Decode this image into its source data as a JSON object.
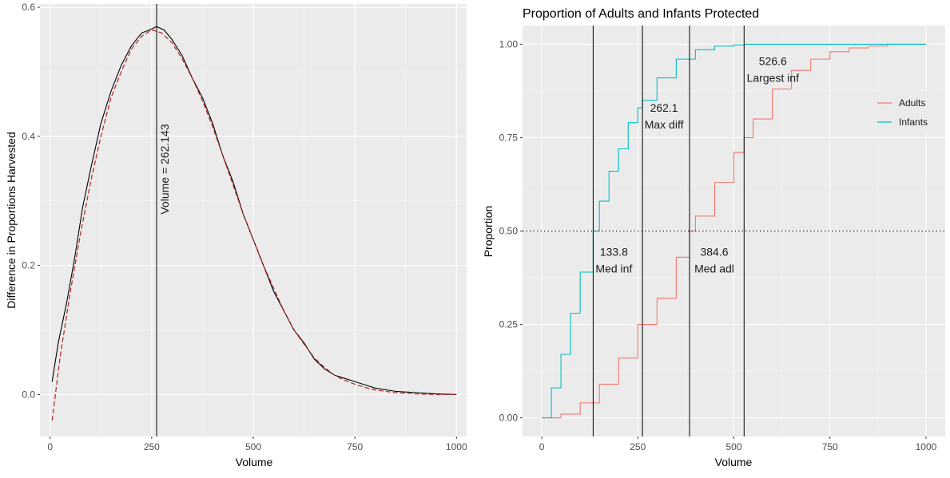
{
  "chart_data": [
    {
      "type": "line",
      "title": "",
      "xlabel": "Volume",
      "ylabel": "Difference in Proportions Harvested",
      "xlim": [
        -25,
        1025
      ],
      "ylim": [
        -0.065,
        0.605
      ],
      "x_ticks": [
        0,
        250,
        500,
        750,
        1000
      ],
      "x_tick_labels": [
        "0",
        "250",
        "500",
        "750",
        "1000"
      ],
      "y_ticks": [
        0.0,
        0.2,
        0.4,
        0.6
      ],
      "y_tick_labels": [
        "0.0",
        "0.2",
        "0.4",
        "0.6"
      ],
      "grid": true,
      "series": [
        {
          "style": "solid",
          "color": "#000000",
          "x": [
            5,
            20,
            40,
            60,
            80,
            100,
            125,
            150,
            175,
            200,
            225,
            245,
            262,
            280,
            300,
            325,
            350,
            375,
            400,
            425,
            450,
            475,
            500,
            525,
            550,
            575,
            600,
            625,
            650,
            675,
            700,
            725,
            750,
            775,
            800,
            850,
            900,
            950,
            1000
          ],
          "y": [
            0.02,
            0.08,
            0.14,
            0.21,
            0.29,
            0.35,
            0.42,
            0.47,
            0.51,
            0.54,
            0.56,
            0.565,
            0.57,
            0.565,
            0.55,
            0.525,
            0.49,
            0.46,
            0.42,
            0.37,
            0.33,
            0.28,
            0.24,
            0.2,
            0.16,
            0.13,
            0.1,
            0.08,
            0.055,
            0.04,
            0.03,
            0.025,
            0.02,
            0.015,
            0.01,
            0.005,
            0.003,
            0.001,
            0.0
          ]
        },
        {
          "style": "dashed",
          "color": "#b22222",
          "x": [
            5,
            25,
            50,
            75,
            100,
            125,
            150,
            175,
            200,
            225,
            250,
            275,
            300,
            325,
            350,
            375,
            400,
            425,
            450,
            475,
            500,
            525,
            550,
            575,
            600,
            625,
            650,
            675,
            700,
            725,
            750,
            775,
            800,
            850,
            900,
            950,
            1000
          ],
          "y": [
            -0.04,
            0.06,
            0.16,
            0.25,
            0.33,
            0.4,
            0.46,
            0.5,
            0.535,
            0.555,
            0.565,
            0.56,
            0.545,
            0.52,
            0.49,
            0.455,
            0.415,
            0.37,
            0.325,
            0.28,
            0.24,
            0.2,
            0.165,
            0.13,
            0.1,
            0.078,
            0.057,
            0.042,
            0.03,
            0.022,
            0.016,
            0.011,
            0.007,
            0.003,
            0.001,
            0.0,
            0.0
          ]
        }
      ],
      "vline": {
        "x": 262.143,
        "label": "Volume = 262.143"
      }
    },
    {
      "type": "line",
      "title": "Proportion of Adults and Infants Protected",
      "xlabel": "Volume",
      "ylabel": "Proportion",
      "xlim": [
        -50,
        1050
      ],
      "ylim": [
        -0.05,
        1.05
      ],
      "x_ticks": [
        0,
        250,
        500,
        750,
        1000
      ],
      "x_tick_labels": [
        "0",
        "250",
        "500",
        "750",
        "1000"
      ],
      "y_ticks": [
        0.0,
        0.25,
        0.5,
        0.75,
        1.0
      ],
      "y_tick_labels": [
        "0.00",
        "0.25",
        "0.50",
        "0.75",
        "1.00"
      ],
      "grid": true,
      "legend_position": "right",
      "series": [
        {
          "name": "Adults",
          "color": "#f8766d",
          "x": [
            0,
            50,
            100,
            150,
            200,
            250,
            300,
            350,
            384.6,
            400,
            450,
            500,
            526.6,
            550,
            600,
            650,
            700,
            750,
            800,
            850,
            900,
            950,
            1000
          ],
          "y": [
            0.0,
            0.01,
            0.04,
            0.09,
            0.16,
            0.25,
            0.32,
            0.43,
            0.5,
            0.54,
            0.63,
            0.71,
            0.75,
            0.8,
            0.88,
            0.93,
            0.96,
            0.98,
            0.99,
            0.995,
            1.0,
            1.0,
            1.0
          ]
        },
        {
          "name": "Infants",
          "color": "#00bfc4",
          "x": [
            0,
            25,
            50,
            75,
            100,
            133.8,
            150,
            175,
            200,
            225,
            250,
            262.1,
            300,
            350,
            400,
            450,
            500,
            526.6,
            600,
            700,
            800,
            900,
            1000
          ],
          "y": [
            0.0,
            0.08,
            0.17,
            0.28,
            0.39,
            0.5,
            0.58,
            0.66,
            0.72,
            0.79,
            0.83,
            0.85,
            0.91,
            0.96,
            0.985,
            0.995,
            0.998,
            1.0,
            1.0,
            1.0,
            1.0,
            1.0,
            1.0
          ]
        }
      ],
      "hline": {
        "y": 0.5
      },
      "vlines": [
        {
          "x": 133.8,
          "value_label": "133.8",
          "text_label": "Med inf"
        },
        {
          "x": 262.1,
          "value_label": "262.1",
          "text_label": "Max diff"
        },
        {
          "x": 384.6,
          "value_label": "384.6",
          "text_label": "Med adl"
        },
        {
          "x": 526.6,
          "value_label": "526.6",
          "text_label": "Largest inf"
        }
      ]
    }
  ]
}
